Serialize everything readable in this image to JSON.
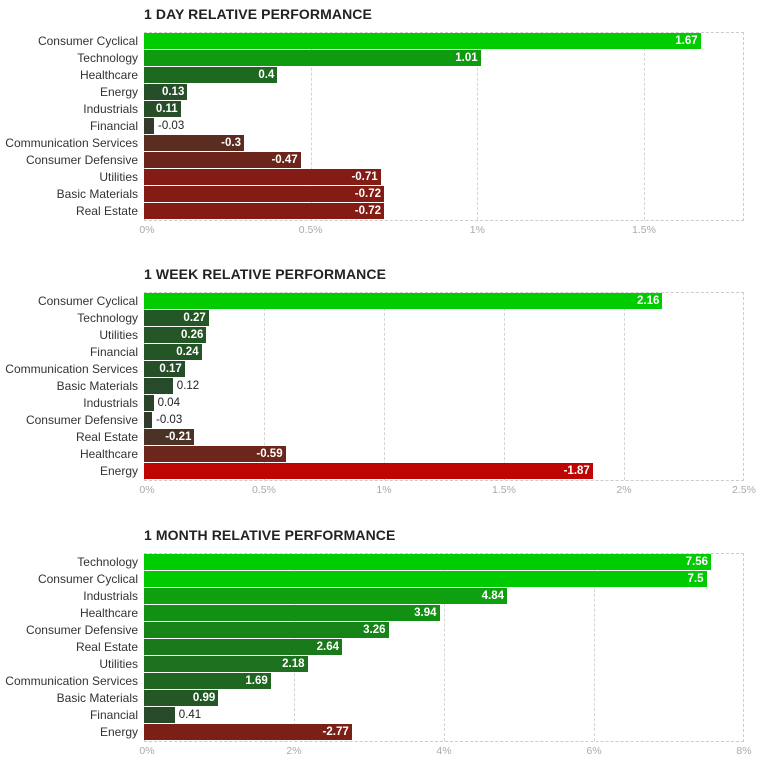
{
  "chart_data": [
    {
      "type": "bar",
      "orientation": "horizontal",
      "title": "1 DAY RELATIVE PERFORMANCE",
      "categories": [
        "Consumer Cyclical",
        "Technology",
        "Healthcare",
        "Energy",
        "Industrials",
        "Financial",
        "Communication Services",
        "Consumer Defensive",
        "Utilities",
        "Basic Materials",
        "Real Estate"
      ],
      "values": [
        1.67,
        1.01,
        0.4,
        0.13,
        0.11,
        -0.03,
        -0.3,
        -0.47,
        -0.71,
        -0.72,
        -0.72
      ],
      "value_labels": [
        "1.67",
        "1.01",
        "0.4",
        "0.13",
        "0.11",
        "-0.03",
        "-0.3",
        "-0.47",
        "-0.71",
        "-0.72",
        "-0.72"
      ],
      "xlim": [
        0,
        1.8
      ],
      "xticks": [
        0,
        0.5,
        1,
        1.5
      ],
      "xtick_labels": [
        "0%",
        "0.5%",
        "1%",
        "1.5%"
      ],
      "grid": true,
      "colors": {
        "positive_strong": "#00cc00",
        "neutral": "#2b3f2e",
        "negative_strong": "#cc0000"
      }
    },
    {
      "type": "bar",
      "orientation": "horizontal",
      "title": "1 WEEK RELATIVE PERFORMANCE",
      "categories": [
        "Consumer Cyclical",
        "Technology",
        "Utilities",
        "Financial",
        "Communication Services",
        "Basic Materials",
        "Industrials",
        "Consumer Defensive",
        "Real Estate",
        "Healthcare",
        "Energy"
      ],
      "values": [
        2.16,
        0.27,
        0.26,
        0.24,
        0.17,
        0.12,
        0.04,
        -0.03,
        -0.21,
        -0.59,
        -1.87
      ],
      "value_labels": [
        "2.16",
        "0.27",
        "0.26",
        "0.24",
        "0.17",
        "0.12",
        "0.04",
        "-0.03",
        "-0.21",
        "-0.59",
        "-1.87"
      ],
      "xlim": [
        0,
        2.5
      ],
      "xticks": [
        0,
        0.5,
        1,
        1.5,
        2,
        2.5
      ],
      "xtick_labels": [
        "0%",
        "0.5%",
        "1%",
        "1.5%",
        "2%",
        "2.5%"
      ],
      "grid": true,
      "colors": {
        "positive_strong": "#00cc00",
        "neutral": "#2b3f2e",
        "negative_strong": "#cc0000"
      }
    },
    {
      "type": "bar",
      "orientation": "horizontal",
      "title": "1 MONTH RELATIVE PERFORMANCE",
      "categories": [
        "Technology",
        "Consumer Cyclical",
        "Industrials",
        "Healthcare",
        "Consumer Defensive",
        "Real Estate",
        "Utilities",
        "Communication Services",
        "Basic Materials",
        "Financial",
        "Energy"
      ],
      "values": [
        7.56,
        7.5,
        4.84,
        3.94,
        3.26,
        2.64,
        2.18,
        1.69,
        0.99,
        0.41,
        -2.77
      ],
      "value_labels": [
        "7.56",
        "7.5",
        "4.84",
        "3.94",
        "3.26",
        "2.64",
        "2.18",
        "1.69",
        "0.99",
        "0.41",
        "-2.77"
      ],
      "xlim": [
        0,
        8
      ],
      "xticks": [
        0,
        2,
        4,
        6,
        8
      ],
      "xtick_labels": [
        "0%",
        "2%",
        "4%",
        "6%",
        "8%"
      ],
      "grid": true,
      "colors": {
        "positive_strong": "#00cc00",
        "neutral": "#2b3f2e",
        "negative_strong": "#cc0000"
      }
    }
  ]
}
